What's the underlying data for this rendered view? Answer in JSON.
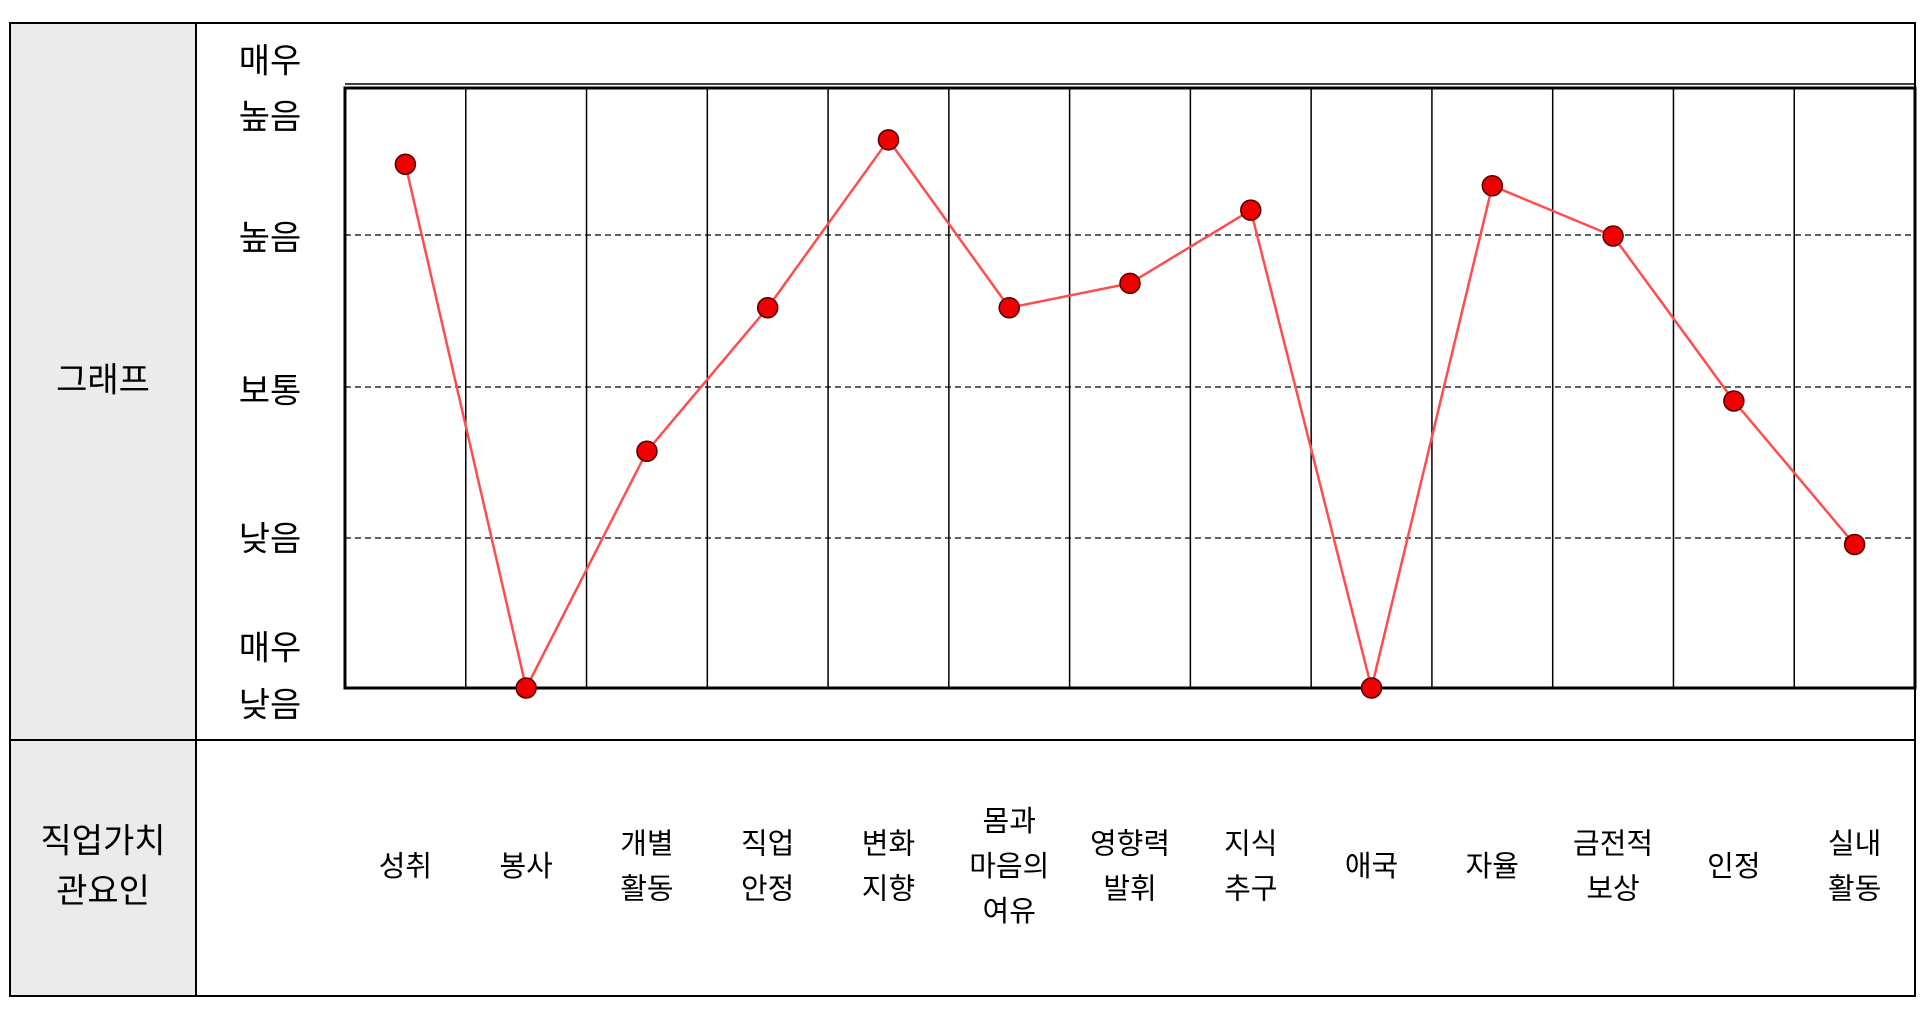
{
  "table": {
    "row1_header": "그래프",
    "row2_header_lines": [
      "직업가치",
      "관요인"
    ]
  },
  "chart_data": {
    "type": "line",
    "y_levels": [
      {
        "value": 0,
        "lines": [
          "매우",
          "낮음"
        ]
      },
      {
        "value": 1,
        "lines": [
          "낮음"
        ]
      },
      {
        "value": 2,
        "lines": [
          "보통"
        ]
      },
      {
        "value": 3,
        "lines": [
          "높음"
        ]
      },
      {
        "value": 4,
        "lines": [
          "매우",
          "높음"
        ]
      }
    ],
    "ylim": [
      0,
      4
    ],
    "dashed_grid_at": [
      1,
      2,
      3
    ],
    "categories": [
      [
        "성취"
      ],
      [
        "봉사"
      ],
      [
        "개별",
        "활동"
      ],
      [
        "직업",
        "안정"
      ],
      [
        "변화",
        "지향"
      ],
      [
        "몸과",
        "마음의",
        "여유"
      ],
      [
        "영향력",
        "발휘"
      ],
      [
        "지식",
        "추구"
      ],
      [
        "애국"
      ],
      [
        "자율"
      ],
      [
        "금전적",
        "보상"
      ],
      [
        "인정"
      ],
      [
        "실내",
        "활동"
      ]
    ],
    "series": [
      {
        "values": [
          3.65,
          0.0,
          1.65,
          2.65,
          3.82,
          2.65,
          2.82,
          3.33,
          0.0,
          3.5,
          3.15,
          2.0,
          1.0
        ]
      }
    ],
    "line_color": "#ff4d4d",
    "marker_color": "#ee0000"
  }
}
